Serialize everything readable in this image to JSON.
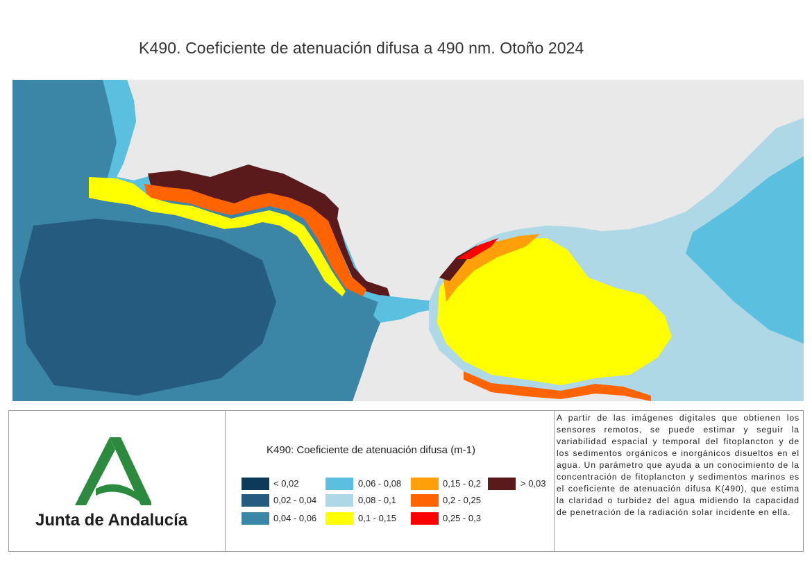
{
  "title": "K490. Coeficiente de atenuación difusa a 490 nm. Otoño 2024",
  "logo": {
    "name": "Junta de Andalucía",
    "colors": {
      "green": "#2b8a3e",
      "dark": "#1d1d1d"
    }
  },
  "legend": {
    "title": "K490: Coeficiente de atenuación difusa (m-1)",
    "items": [
      {
        "label": "< 0,02",
        "color": "#0e3a5a"
      },
      {
        "label": "0,02 - 0,04",
        "color": "#265b80"
      },
      {
        "label": "0,04 - 0,06",
        "color": "#3b85a6"
      },
      {
        "label": "0,06 - 0,08",
        "color": "#5bbfe0"
      },
      {
        "label": "0,08 - 0,1",
        "color": "#aed8e6"
      },
      {
        "label": "0,1 - 0,15",
        "color": "#ffff00"
      },
      {
        "label": "0,15 - 0,2",
        "color": "#ffa00a"
      },
      {
        "label": "0,2 - 0,25",
        "color": "#ff6400"
      },
      {
        "label": "0,25 - 0,3",
        "color": "#ff0000"
      },
      {
        "label": "> 0,03",
        "color": "#5a1a1c"
      }
    ]
  },
  "description": "A partir de las imágenes digitales que obtienen los sensores remotos, se puede estimar y seguir la variabilidad espacial y temporal del fitoplancton y de los sedimentos orgánicos e inorgánicos disueltos en el agua. Un parámetro que ayuda a un conocimiento de la concentración de fitoplancton y sedimentos marinos es el coeficiente de atenuación difusa K(490), que estima la claridad o turbidez del agua midiendo la capacidad de penetración de la radiación solar incidente en ella.",
  "map": {
    "land_color": "#e9e9e9"
  }
}
